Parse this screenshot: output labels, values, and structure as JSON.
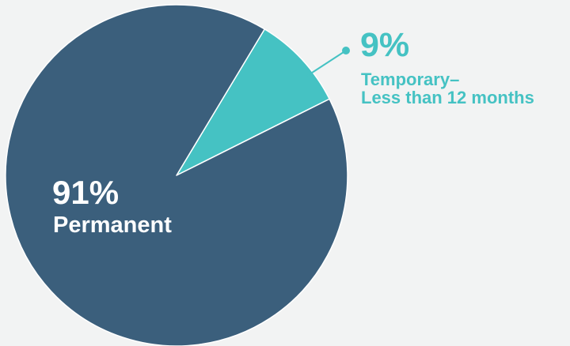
{
  "chart_data": {
    "type": "pie",
    "title": "",
    "slices": [
      {
        "pct_label": "91%",
        "label": "Permanent",
        "value": 91,
        "color": "#3b5f7c",
        "label_color": "#ffffff"
      },
      {
        "pct_label": "9%",
        "label_line1": "Temporary–",
        "label_line2": "Less than 12 months",
        "value": 9,
        "color": "#45c2c3",
        "label_color": "#45c2c3"
      }
    ],
    "legend": "none",
    "annotation_leader": "callout line with dot from the 9% slice to its label"
  }
}
